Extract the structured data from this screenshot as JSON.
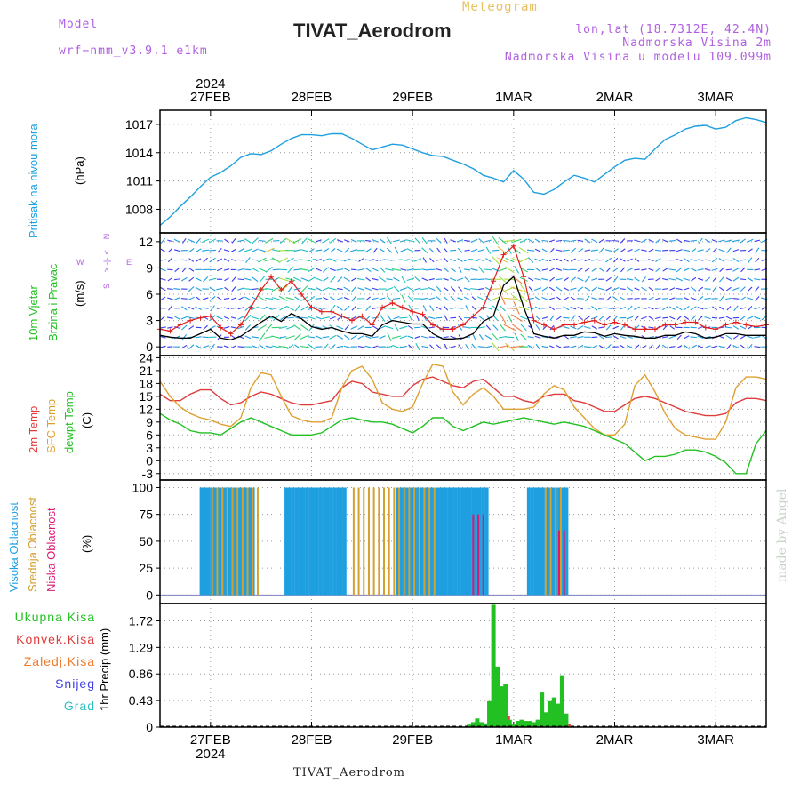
{
  "header": {
    "model_label": "Model",
    "model_name": "wrf−nmm_v3.9.1  e1km",
    "product": "Meteogram",
    "station": "TIVAT_Aerodrom",
    "lonlat": "lon,lat (18.7312E, 42.4N)",
    "elevation": "Nadmorska Visina 2m",
    "model_elevation": "Nadmorska Visina u modelu 109.099m",
    "footer_station": "TIVAT_Aerodrom",
    "credit": "made by Angel"
  },
  "colors": {
    "pressure": "#1e9fe0",
    "wind_speed": "#000000",
    "gust": "#e02020",
    "temp2m": "#e03c3c",
    "sfc": "#e0a030",
    "dewpt": "#22c022",
    "high_cloud": "#1e9fe0",
    "mid_cloud": "#d4a030",
    "low_cloud": "#d81b74",
    "total_precip": "#22c022",
    "conv_precip": "#e03c3c",
    "frozen_precip": "#f07a28",
    "snow": "#4040e0",
    "hail": "#30c0c0"
  },
  "chart_data": [
    {
      "type": "line",
      "panel": "pressure",
      "ylabel": "Pritisak na nivou mora",
      "unit": "(hPa)",
      "ylim": [
        1005.5,
        1018.5
      ],
      "yticks": [
        1008,
        1011,
        1014,
        1017
      ],
      "xticks": [
        "27FEB",
        "28FEB",
        "29FEB",
        "1MAR",
        "2MAR",
        "3MAR"
      ],
      "xtick_year": "2024",
      "x_start_day": -0.5,
      "x_end_day": 5.5,
      "grid": true,
      "x": [
        -0.5,
        -0.4,
        -0.3,
        -0.2,
        -0.1,
        0.0,
        0.1,
        0.2,
        0.3,
        0.4,
        0.5,
        0.6,
        0.7,
        0.8,
        0.9,
        1.0,
        1.1,
        1.2,
        1.3,
        1.4,
        1.5,
        1.6,
        1.7,
        1.8,
        1.9,
        2.0,
        2.1,
        2.2,
        2.3,
        2.4,
        2.5,
        2.6,
        2.7,
        2.8,
        2.9,
        3.0,
        3.1,
        3.2,
        3.3,
        3.4,
        3.5,
        3.6,
        3.7,
        3.8,
        3.9,
        4.0,
        4.1,
        4.2,
        4.3,
        4.4,
        4.5,
        4.6,
        4.7,
        4.8,
        4.9,
        5.0,
        5.1,
        5.2,
        5.3,
        5.4,
        5.5
      ],
      "y": [
        1006.3,
        1007.2,
        1008.3,
        1009.3,
        1010.4,
        1011.4,
        1011.9,
        1012.6,
        1013.5,
        1013.9,
        1013.8,
        1014.2,
        1014.9,
        1015.5,
        1015.9,
        1015.9,
        1015.8,
        1016.0,
        1016.0,
        1015.5,
        1014.9,
        1014.3,
        1014.6,
        1014.9,
        1014.8,
        1014.4,
        1014.0,
        1013.7,
        1013.6,
        1013.2,
        1012.8,
        1012.3,
        1011.6,
        1011.3,
        1010.9,
        1012.1,
        1011.2,
        1009.8,
        1009.6,
        1010.1,
        1010.9,
        1011.6,
        1011.3,
        1010.9,
        1011.7,
        1012.5,
        1013.2,
        1013.4,
        1013.3,
        1014.4,
        1015.4,
        1015.9,
        1016.5,
        1016.8,
        1016.9,
        1016.5,
        1016.7,
        1017.4,
        1017.7,
        1017.5,
        1017.2
      ]
    },
    {
      "type": "line",
      "panel": "wind",
      "ylabel": "10m Vjetar",
      "ylabel2": "Brzina i Pravac",
      "unit": "(m/s)",
      "compass": [
        "N",
        "W",
        "E",
        "S"
      ],
      "ylim": [
        -1,
        13
      ],
      "yticks": [
        0,
        3,
        6,
        9,
        12
      ],
      "xlim": [
        -0.5,
        5.5
      ],
      "series": [
        {
          "role": "speed",
          "x": [
            -0.5,
            -0.4,
            -0.3,
            -0.2,
            -0.1,
            0.0,
            0.1,
            0.2,
            0.3,
            0.4,
            0.5,
            0.6,
            0.7,
            0.8,
            0.9,
            1.0,
            1.1,
            1.2,
            1.3,
            1.4,
            1.5,
            1.6,
            1.7,
            1.8,
            1.9,
            2.0,
            2.1,
            2.2,
            2.3,
            2.4,
            2.5,
            2.6,
            2.7,
            2.8,
            2.9,
            3.0,
            3.1,
            3.2,
            3.3,
            3.4,
            3.5,
            3.6,
            3.7,
            3.8,
            3.9,
            4.0,
            4.1,
            4.2,
            4.3,
            4.4,
            4.5,
            4.6,
            4.7,
            4.8,
            4.9,
            5.0,
            5.1,
            5.2,
            5.3,
            5.4,
            5.5
          ],
          "y": [
            1.3,
            1.1,
            1.0,
            1.0,
            1.5,
            2.0,
            1.0,
            0.8,
            1.2,
            2.0,
            2.8,
            3.5,
            2.9,
            3.8,
            3.2,
            2.3,
            2.0,
            2.2,
            1.8,
            1.5,
            1.5,
            1.2,
            2.5,
            3.0,
            2.8,
            2.6,
            2.6,
            1.5,
            0.9,
            0.9,
            1.0,
            1.5,
            2.9,
            3.5,
            7.0,
            8.0,
            4.5,
            1.5,
            1.2,
            1.0,
            1.3,
            1.3,
            1.7,
            1.6,
            1.2,
            1.5,
            1.3,
            1.2,
            1.0,
            1.0,
            1.3,
            1.3,
            1.7,
            1.5,
            1.0,
            1.1,
            1.5,
            1.5,
            1.3,
            1.3,
            1.3
          ]
        },
        {
          "role": "gust",
          "x": [
            -0.5,
            -0.4,
            -0.3,
            -0.2,
            -0.1,
            0.0,
            0.1,
            0.2,
            0.3,
            0.4,
            0.5,
            0.6,
            0.7,
            0.8,
            0.9,
            1.0,
            1.1,
            1.2,
            1.3,
            1.4,
            1.5,
            1.6,
            1.7,
            1.8,
            1.9,
            2.0,
            2.1,
            2.2,
            2.3,
            2.4,
            2.5,
            2.6,
            2.7,
            2.8,
            2.9,
            3.0,
            3.1,
            3.2,
            3.3,
            3.4,
            3.5,
            3.6,
            3.7,
            3.8,
            3.9,
            4.0,
            4.1,
            4.2,
            4.3,
            4.4,
            4.5,
            4.6,
            4.7,
            4.8,
            4.9,
            5.0,
            5.1,
            5.2,
            5.3,
            5.4,
            5.5
          ],
          "y": [
            2.0,
            1.8,
            2.5,
            3.0,
            3.3,
            3.5,
            2.2,
            1.5,
            2.5,
            4.5,
            6.5,
            8.0,
            6.5,
            7.5,
            6.0,
            4.5,
            4.0,
            4.0,
            3.5,
            3.0,
            3.5,
            2.5,
            4.5,
            5.0,
            4.5,
            4.0,
            3.7,
            2.5,
            2.0,
            2.0,
            2.5,
            3.5,
            4.5,
            7.5,
            10.5,
            11.5,
            8.0,
            3.0,
            2.5,
            2.0,
            2.5,
            2.5,
            2.8,
            3.0,
            2.5,
            2.8,
            2.5,
            2.0,
            2.0,
            2.0,
            2.5,
            2.5,
            2.8,
            2.8,
            2.2,
            2.0,
            2.5,
            2.8,
            2.5,
            2.3,
            2.5
          ]
        }
      ]
    },
    {
      "type": "line",
      "panel": "temperature",
      "ylim": [
        -4.5,
        24.5
      ],
      "yticks": [
        -3,
        0,
        3,
        6,
        9,
        12,
        15,
        18,
        21,
        24
      ],
      "unit": "(C)",
      "xlim": [
        -0.5,
        5.5
      ],
      "series": [
        {
          "name": "2m Temp",
          "x": [
            -0.5,
            -0.4,
            -0.3,
            -0.2,
            -0.1,
            0.0,
            0.1,
            0.2,
            0.3,
            0.4,
            0.5,
            0.6,
            0.7,
            0.8,
            0.9,
            1.0,
            1.1,
            1.2,
            1.3,
            1.4,
            1.5,
            1.6,
            1.7,
            1.8,
            1.9,
            2.0,
            2.1,
            2.2,
            2.3,
            2.4,
            2.5,
            2.6,
            2.7,
            2.8,
            2.9,
            3.0,
            3.1,
            3.2,
            3.3,
            3.4,
            3.5,
            3.6,
            3.7,
            3.8,
            3.9,
            4.0,
            4.1,
            4.2,
            4.3,
            4.4,
            4.5,
            4.6,
            4.7,
            4.8,
            4.9,
            5.0,
            5.1,
            5.2,
            5.3,
            5.4,
            5.5
          ],
          "y": [
            15.5,
            14.0,
            14.0,
            15.5,
            16.5,
            16.5,
            14.5,
            13.0,
            13.5,
            15.0,
            16.0,
            15.5,
            14.5,
            13.5,
            13.0,
            13.0,
            13.5,
            14.0,
            17.0,
            18.5,
            18.0,
            16.0,
            15.5,
            15.0,
            15.0,
            17.5,
            19.0,
            19.5,
            18.5,
            17.5,
            17.0,
            18.5,
            19.0,
            17.0,
            15.0,
            15.0,
            14.0,
            13.5,
            15.0,
            15.5,
            15.5,
            14.0,
            13.5,
            12.5,
            11.5,
            11.5,
            13.0,
            14.5,
            15.0,
            14.5,
            13.5,
            12.5,
            11.5,
            11.0,
            10.5,
            10.5,
            11.0,
            13.5,
            14.5,
            14.5,
            14.0
          ]
        },
        {
          "name": "SFC Temp",
          "x": [
            -0.5,
            -0.4,
            -0.3,
            -0.2,
            -0.1,
            0.0,
            0.1,
            0.2,
            0.3,
            0.4,
            0.5,
            0.6,
            0.7,
            0.8,
            0.9,
            1.0,
            1.1,
            1.2,
            1.3,
            1.4,
            1.5,
            1.6,
            1.7,
            1.8,
            1.9,
            2.0,
            2.1,
            2.2,
            2.3,
            2.4,
            2.5,
            2.6,
            2.7,
            2.8,
            2.9,
            3.0,
            3.1,
            3.2,
            3.3,
            3.4,
            3.5,
            3.6,
            3.7,
            3.8,
            3.9,
            4.0,
            4.1,
            4.2,
            4.3,
            4.4,
            4.5,
            4.6,
            4.7,
            4.8,
            4.9,
            5.0,
            5.1,
            5.2,
            5.3,
            5.4,
            5.5
          ],
          "y": [
            18.5,
            15.0,
            12.5,
            11.0,
            10.0,
            9.5,
            8.5,
            8.0,
            10.0,
            17.0,
            20.5,
            20.0,
            15.0,
            10.5,
            9.5,
            9.0,
            9.0,
            10.0,
            17.0,
            21.0,
            22.0,
            19.0,
            13.5,
            12.0,
            11.5,
            12.5,
            18.0,
            22.5,
            22.0,
            16.0,
            13.0,
            15.5,
            17.0,
            15.0,
            12.0,
            12.0,
            12.0,
            12.5,
            15.5,
            17.5,
            16.5,
            12.5,
            10.0,
            7.5,
            6.0,
            6.0,
            8.5,
            17.5,
            20.0,
            16.0,
            11.0,
            7.5,
            6.0,
            5.5,
            5.0,
            5.0,
            9.0,
            17.0,
            19.5,
            19.5,
            19.0
          ]
        },
        {
          "name": "dewpt Temp",
          "x": [
            -0.5,
            -0.4,
            -0.3,
            -0.2,
            -0.1,
            0.0,
            0.1,
            0.2,
            0.3,
            0.4,
            0.5,
            0.6,
            0.7,
            0.8,
            0.9,
            1.0,
            1.1,
            1.2,
            1.3,
            1.4,
            1.5,
            1.6,
            1.7,
            1.8,
            1.9,
            2.0,
            2.1,
            2.2,
            2.3,
            2.4,
            2.5,
            2.6,
            2.7,
            2.8,
            2.9,
            3.0,
            3.1,
            3.2,
            3.3,
            3.4,
            3.5,
            3.6,
            3.7,
            3.8,
            3.9,
            4.0,
            4.1,
            4.2,
            4.3,
            4.4,
            4.5,
            4.6,
            4.7,
            4.8,
            4.9,
            5.0,
            5.1,
            5.2,
            5.3,
            5.4,
            5.5
          ],
          "y": [
            11.0,
            9.5,
            8.5,
            7.0,
            6.5,
            6.5,
            6.0,
            7.5,
            9.0,
            10.0,
            9.0,
            8.0,
            7.0,
            6.0,
            6.0,
            6.0,
            6.5,
            8.0,
            9.5,
            10.0,
            9.5,
            9.0,
            9.0,
            8.5,
            7.5,
            6.5,
            8.0,
            10.0,
            10.0,
            8.0,
            7.0,
            8.0,
            9.0,
            8.5,
            9.0,
            9.5,
            10.0,
            9.5,
            9.0,
            8.5,
            9.0,
            8.5,
            8.0,
            7.0,
            6.0,
            5.0,
            4.0,
            2.0,
            0.0,
            1.0,
            1.0,
            1.5,
            2.5,
            2.5,
            2.0,
            1.0,
            -0.5,
            -3.0,
            -3.0,
            4.0,
            7.0
          ]
        }
      ]
    },
    {
      "type": "bar",
      "panel": "cloud",
      "unit": "(%)",
      "ylim": [
        -8,
        107
      ],
      "yticks": [
        0,
        25,
        50,
        75,
        100
      ],
      "xlim": [
        -0.5,
        5.5
      ],
      "series": [
        {
          "name": "Visoka Oblacnost",
          "ranges": [
            [
              -0.09,
              0.45
            ],
            [
              0.75,
              1.35
            ],
            [
              1.85,
              2.75
            ],
            [
              3.15,
              3.55
            ]
          ],
          "values": [
            100,
            100,
            100,
            100
          ]
        },
        {
          "name": "Srednja Oblacnost",
          "ranges": [
            [
              0.0,
              0.5
            ],
            [
              1.4,
              2.25
            ],
            [
              3.3,
              3.5
            ]
          ],
          "values": [
            100,
            100,
            100
          ]
        },
        {
          "name": "Niska Oblacnost",
          "ranges": [
            [
              2.6,
              2.7
            ],
            [
              3.45,
              3.55
            ]
          ],
          "values": [
            75,
            60
          ]
        }
      ]
    },
    {
      "type": "bar",
      "panel": "precip",
      "ylabel": "1hr Precip",
      "unit": "(mm)",
      "ylim": [
        0,
        2.0
      ],
      "yticks": [
        0,
        0.43,
        0.86,
        1.29,
        1.72
      ],
      "xlim": [
        -0.5,
        5.5
      ],
      "legend": [
        "Ukupna Kisa",
        "Konvek.Kisa",
        "Zaledj.Kisa",
        "Snijeg",
        "Grad"
      ],
      "x": [
        2.56,
        2.6,
        2.64,
        2.68,
        2.72,
        2.76,
        2.8,
        2.84,
        2.88,
        2.92,
        2.96,
        3.0,
        3.04,
        3.08,
        3.12,
        3.16,
        3.2,
        3.24,
        3.28,
        3.32,
        3.36,
        3.4,
        3.44,
        3.48,
        3.52,
        3.56
      ],
      "values": [
        0.04,
        0.08,
        0.14,
        0.08,
        0.06,
        0.42,
        1.98,
        0.98,
        0.66,
        0.7,
        0.12,
        0.04,
        0.1,
        0.12,
        0.1,
        0.1,
        0.08,
        0.12,
        0.56,
        0.24,
        0.42,
        0.48,
        0.38,
        0.84,
        0.22,
        0.0
      ]
    }
  ]
}
